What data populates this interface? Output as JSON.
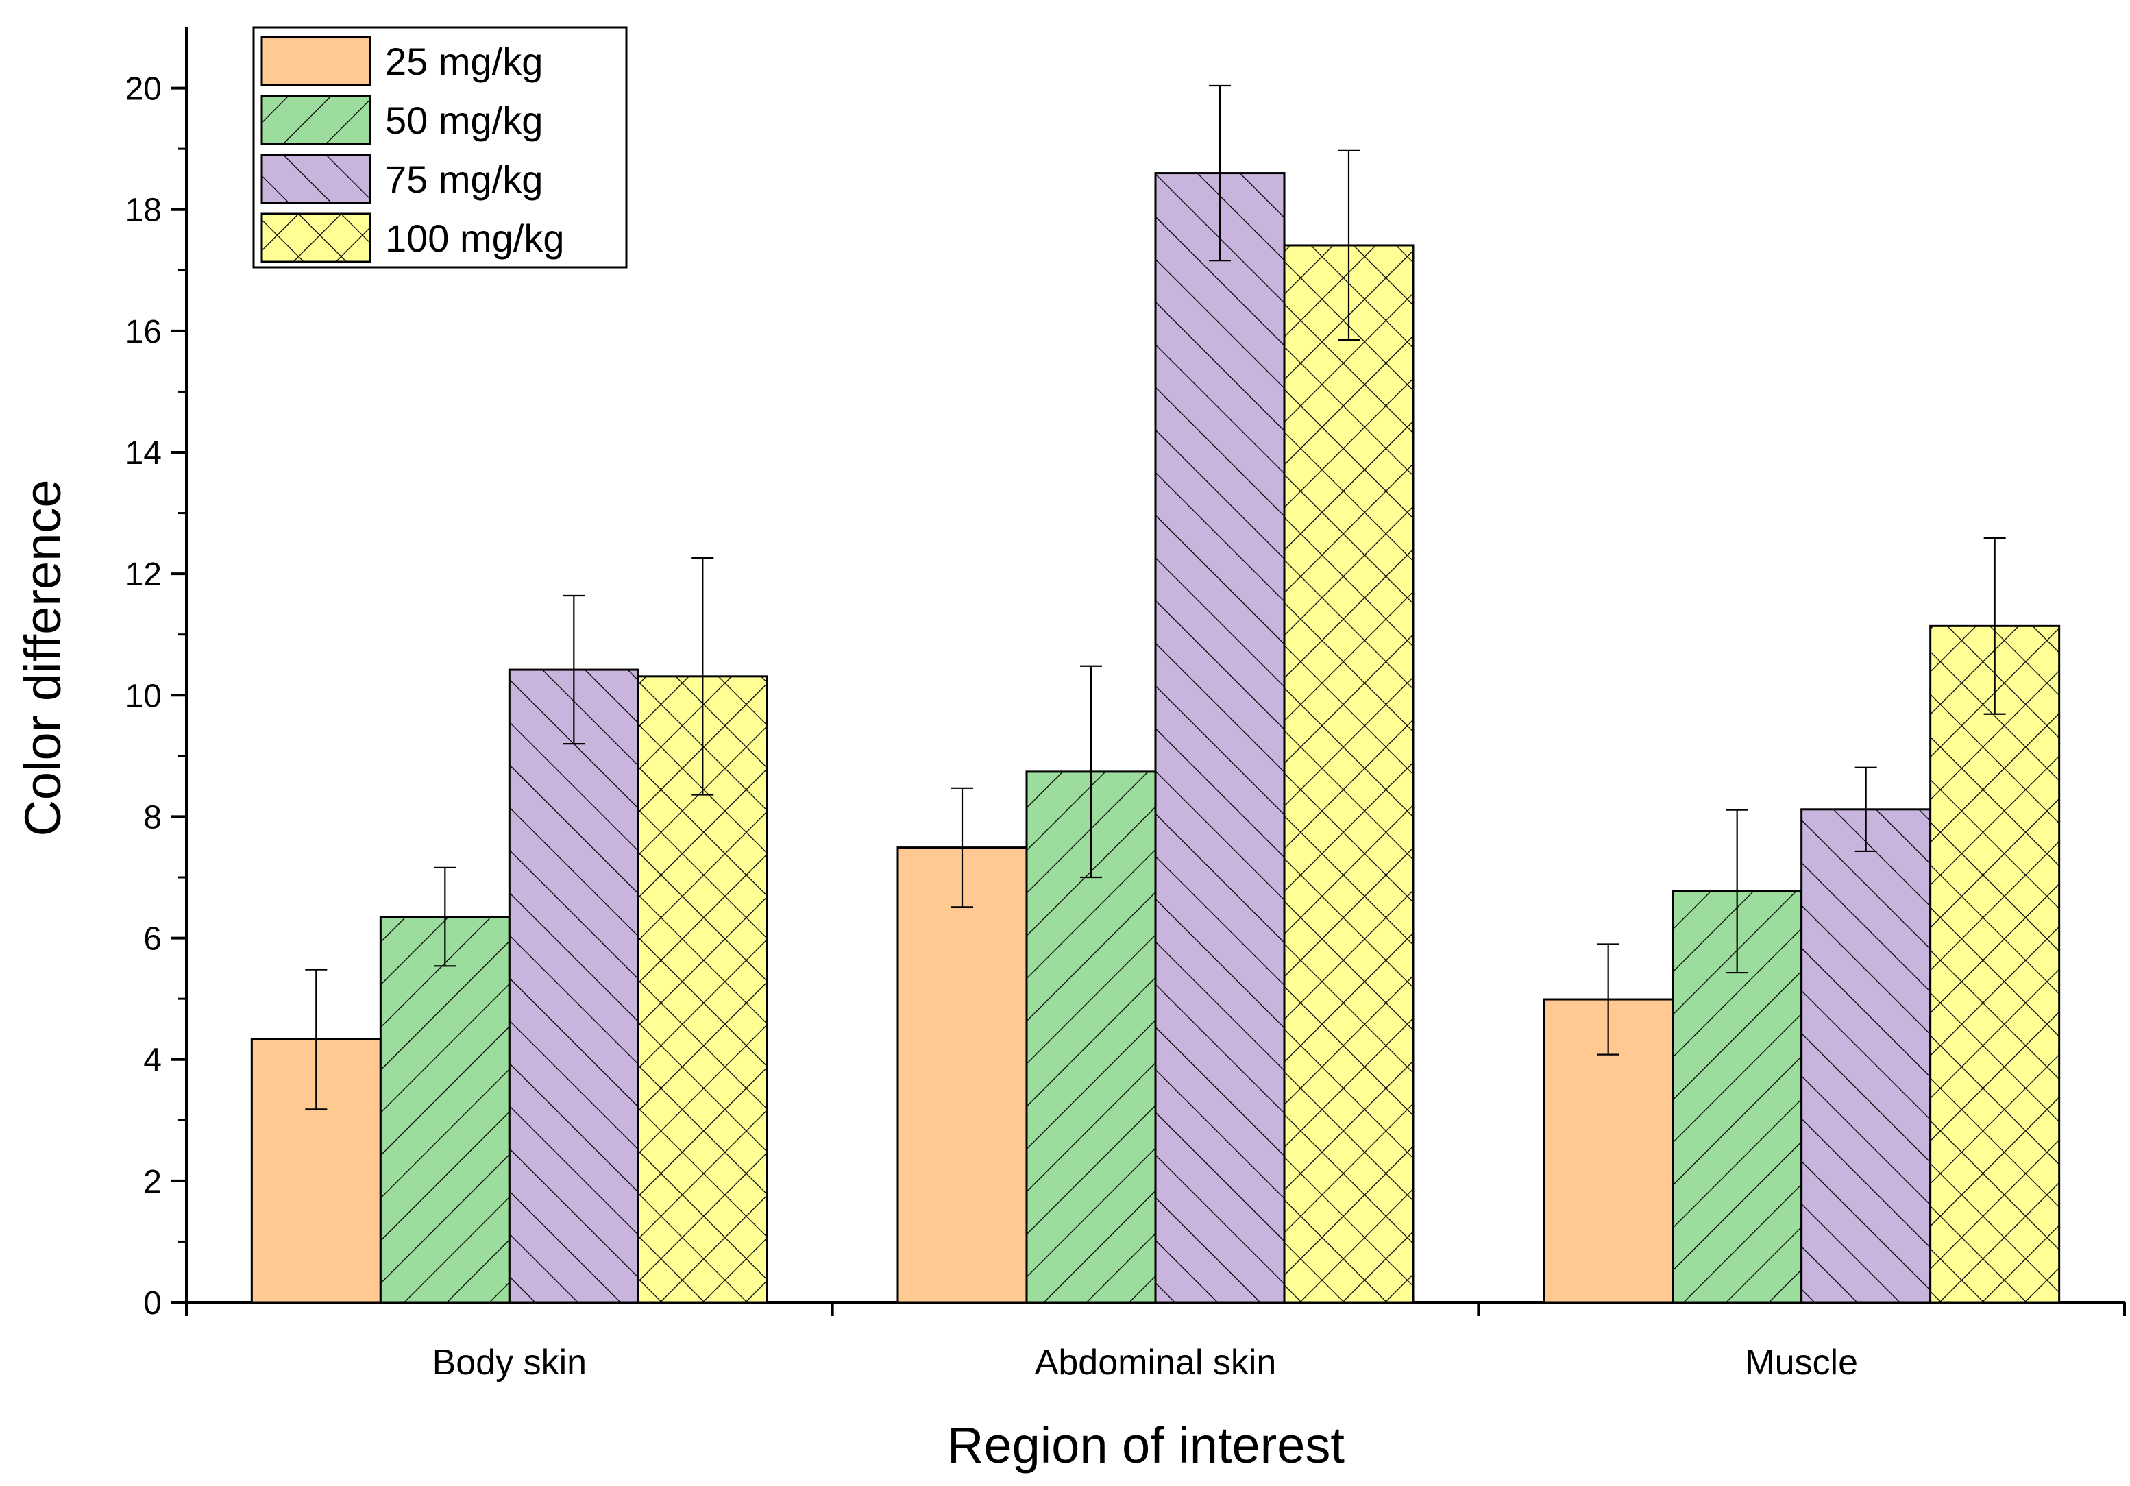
{
  "chart_data": {
    "type": "bar",
    "title": "",
    "xlabel": "Region of interest",
    "ylabel": "Color difference",
    "ylim": [
      0,
      21
    ],
    "yticks": [
      0,
      2,
      4,
      6,
      8,
      10,
      12,
      14,
      16,
      18,
      20
    ],
    "categories": [
      "Body skin",
      "Abdominal skin",
      "Muscle"
    ],
    "legend_position": "top-left",
    "series": [
      {
        "name": "25 mg/kg",
        "color": "#FFC991",
        "pattern": "none",
        "values": [
          4.33,
          7.49,
          4.99
        ],
        "errors": [
          1.15,
          0.98,
          0.91
        ]
      },
      {
        "name": "50 mg/kg",
        "color": "#9CDC9C",
        "pattern": "diagonal-forward",
        "values": [
          6.35,
          8.74,
          6.77
        ],
        "errors": [
          0.81,
          1.74,
          1.34
        ]
      },
      {
        "name": "75 mg/kg",
        "color": "#C8B4DC",
        "pattern": "diagonal-back",
        "values": [
          10.42,
          18.6,
          8.12
        ],
        "errors": [
          1.22,
          1.44,
          0.69
        ]
      },
      {
        "name": "100 mg/kg",
        "color": "#FFFF96",
        "pattern": "crosshatch",
        "values": [
          10.31,
          17.41,
          11.14
        ],
        "errors": [
          1.95,
          1.56,
          1.45
        ]
      }
    ]
  }
}
